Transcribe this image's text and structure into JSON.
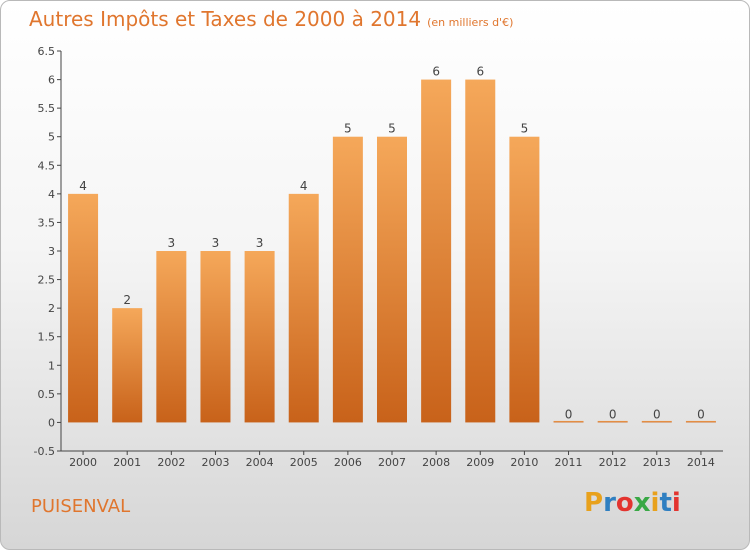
{
  "title": "Autres Impôts et Taxes de 2000 à 2014",
  "unit": "(en milliers d'€)",
  "place": "PUISENVAL",
  "logo": {
    "letters": [
      "P",
      "r",
      "o",
      "x",
      "i",
      "t",
      "i"
    ],
    "colors": [
      "#e8a11c",
      "#2f7fc1",
      "#e3342f",
      "#39a845",
      "#e8a11c",
      "#2f7fc1",
      "#e3342f"
    ]
  },
  "colors": {
    "accent": "#e0762e",
    "bar_top": "#f5a85a",
    "bar_bottom": "#c8621a"
  },
  "chart_data": {
    "type": "bar",
    "categories": [
      "2000",
      "2001",
      "2002",
      "2003",
      "2004",
      "2005",
      "2006",
      "2007",
      "2008",
      "2009",
      "2010",
      "2011",
      "2012",
      "2013",
      "2014"
    ],
    "values": [
      4,
      2,
      3,
      3,
      3,
      4,
      5,
      5,
      6,
      6,
      5,
      0,
      0,
      0,
      0
    ],
    "data_labels": [
      "4",
      "2",
      "3",
      "3",
      "3",
      "4",
      "5",
      "5",
      "6",
      "6",
      "5",
      "0",
      "0",
      "0",
      "0"
    ],
    "title": "Autres Impôts et Taxes de 2000 à 2014",
    "subtitle": "(en milliers d'€)",
    "ylim": [
      -0.5,
      6.5
    ],
    "yticks": [
      -0.5,
      0,
      0.5,
      1,
      1.5,
      2,
      2.5,
      3,
      3.5,
      4,
      4.5,
      5,
      5.5,
      6,
      6.5
    ],
    "ytick_labels": [
      "-0.5",
      "0",
      "0.5",
      "1",
      "1.5",
      "2",
      "2.5",
      "3",
      "3.5",
      "4",
      "4.5",
      "5",
      "5.5",
      "6",
      "6.5"
    ],
    "grid": false,
    "legend": "none"
  }
}
